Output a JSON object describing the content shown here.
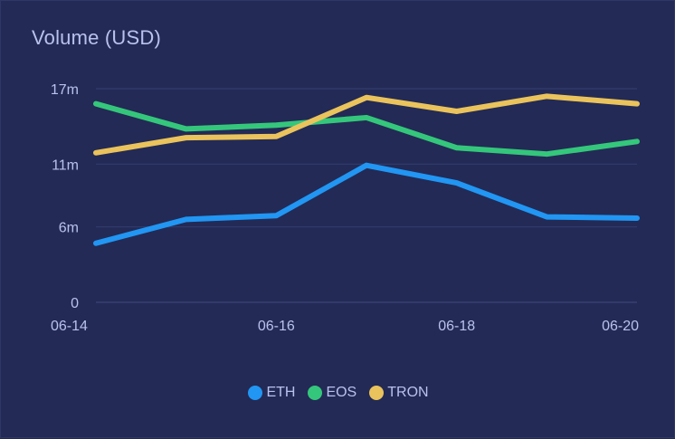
{
  "chart_data": {
    "type": "line",
    "title": "Volume (USD)",
    "xlabel": "",
    "ylabel": "",
    "x": [
      "06-14",
      "06-15",
      "06-16",
      "06-17",
      "06-18",
      "06-19",
      "06-20"
    ],
    "x_tick_labels": [
      "06-14",
      "06-16",
      "06-18",
      "06-20"
    ],
    "y_ticks": [
      0,
      6,
      11,
      17
    ],
    "y_tick_labels": [
      "0",
      "6m",
      "11m",
      "17m"
    ],
    "ylim": [
      0,
      17
    ],
    "grid": true,
    "legend_position": "bottom-center",
    "series": [
      {
        "name": "ETH",
        "color": "#2196f3",
        "values": [
          4.7,
          6.6,
          6.9,
          10.9,
          9.5,
          6.8,
          6.7
        ]
      },
      {
        "name": "EOS",
        "color": "#34c77b",
        "values": [
          15.8,
          13.8,
          14.1,
          14.7,
          12.3,
          11.8,
          12.8
        ]
      },
      {
        "name": "TRON",
        "color": "#eac35c",
        "values": [
          11.9,
          13.1,
          13.2,
          16.3,
          15.2,
          16.4,
          15.8
        ]
      }
    ]
  }
}
